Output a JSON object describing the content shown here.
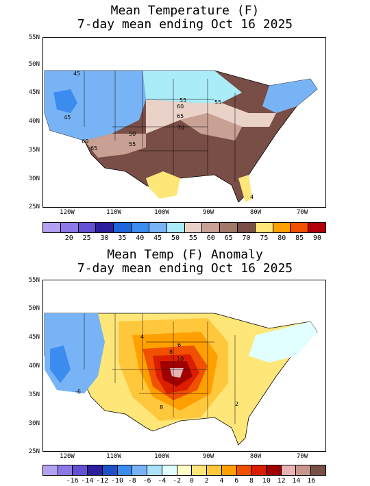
{
  "panel1": {
    "title_line1": "Mean Temperature (F)",
    "title_line2": "7-day mean ending Oct 16 2025",
    "lat_labels": [
      "55N",
      "50N",
      "45N",
      "40N",
      "35N",
      "30N",
      "25N"
    ],
    "lon_labels": [
      "120W",
      "110W",
      "100W",
      "90W",
      "80W",
      "70W"
    ],
    "contour_labels": [
      "45",
      "45",
      "55",
      "60",
      "65",
      "70",
      "50",
      "60",
      "55",
      "65",
      "55",
      "4"
    ],
    "colorbar_labels": [
      "20",
      "25",
      "30",
      "35",
      "40",
      "45",
      "50",
      "55",
      "60",
      "65",
      "70",
      "75",
      "80",
      "85",
      "90"
    ],
    "colorbar_colors": [
      "#b4a0f0",
      "#8c78e6",
      "#6450d2",
      "#2d1e9b",
      "#1e64dc",
      "#3c8cf0",
      "#78b4f5",
      "#aaecf8",
      "#ebd2c8",
      "#c8a094",
      "#a07868",
      "#784e46",
      "#ffe678",
      "#ffa000",
      "#f05000",
      "#b4000a"
    ]
  },
  "panel2": {
    "title_line1": "Mean Temp (F) Anomaly",
    "title_line2": "7-day mean ending Oct 16 2025",
    "lat_labels": [
      "55N",
      "50N",
      "45N",
      "40N",
      "35N",
      "30N",
      "25N"
    ],
    "lon_labels": [
      "120W",
      "110W",
      "100W",
      "90W",
      "80W",
      "70W"
    ],
    "contour_labels": [
      "4",
      "6",
      "8",
      "10",
      "8",
      "-6",
      "2"
    ],
    "colorbar_labels": [
      "-16",
      "-14",
      "-12",
      "-10",
      "-8",
      "-6",
      "-4",
      "-2",
      "0",
      "2",
      "4",
      "6",
      "8",
      "10",
      "12",
      "14",
      "16"
    ],
    "colorbar_colors": [
      "#b4a0f0",
      "#8c78e6",
      "#6450d2",
      "#2d1e9b",
      "#1e50c8",
      "#3c8cf0",
      "#78b4f5",
      "#aae1f8",
      "#e1ffff",
      "#ffffc8",
      "#ffe678",
      "#ffc83c",
      "#ffa000",
      "#f05000",
      "#dc1e00",
      "#a00000",
      "#e6b4b4",
      "#c8968c",
      "#785046"
    ]
  }
}
